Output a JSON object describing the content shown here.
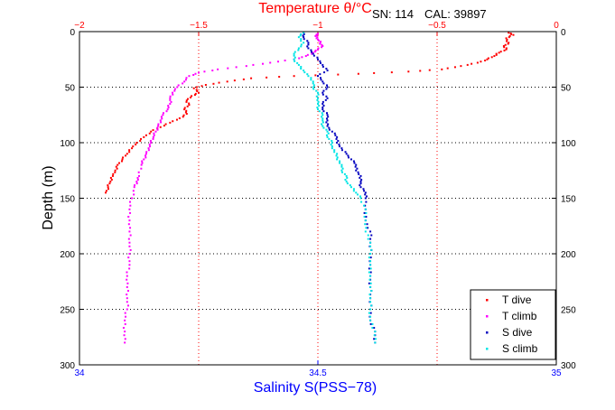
{
  "header": {
    "top_axis_label": "Temperature θ/°C",
    "serial": "SN: 114",
    "calibration": "CAL: 39897"
  },
  "colors": {
    "temperature_axis": "#ff0000",
    "salinity_axis": "#0000ff",
    "t_dive": "#ff0000",
    "t_climb": "#ff00ff",
    "s_dive": "#0000bf",
    "s_climb": "#00e5e5",
    "grid": "#000000"
  },
  "chart_data": {
    "type": "scatter",
    "title": "",
    "ylabel": "Depth (m)",
    "xlabel": "Salinity S(PSS−78)",
    "x2label": "Temperature θ/°C",
    "ylim": [
      0,
      300
    ],
    "y_reversed": true,
    "xlim_salinity": [
      34,
      35
    ],
    "xlim_temperature": [
      -2,
      0
    ],
    "salinity_ticks": [
      "34",
      "34.5",
      "35"
    ],
    "temperature_ticks": [
      "−2",
      "−1.5",
      "−1",
      "−0.5",
      "0"
    ],
    "depth_ticks": [
      "0",
      "50",
      "100",
      "150",
      "200",
      "250",
      "300"
    ],
    "grid": true,
    "legend_position": "bottom-right",
    "series": [
      {
        "name": "T dive",
        "axis": "temperature",
        "marker": "·",
        "points": [
          [
            -0.2,
            1
          ],
          [
            -0.18,
            3
          ],
          [
            -0.21,
            6
          ],
          [
            -0.2,
            10
          ],
          [
            -0.22,
            13
          ],
          [
            -0.21,
            16
          ],
          [
            -0.24,
            19
          ],
          [
            -0.26,
            22
          ],
          [
            -0.29,
            25
          ],
          [
            -0.33,
            28
          ],
          [
            -0.4,
            31
          ],
          [
            -0.48,
            34
          ],
          [
            -0.62,
            36
          ],
          [
            -0.83,
            38
          ],
          [
            -1.1,
            40
          ],
          [
            -1.28,
            42
          ],
          [
            -1.38,
            45
          ],
          [
            -1.47,
            48
          ],
          [
            -1.52,
            51
          ],
          [
            -1.5,
            55
          ],
          [
            -1.53,
            58
          ],
          [
            -1.55,
            62
          ],
          [
            -1.54,
            66
          ],
          [
            -1.56,
            70
          ],
          [
            -1.55,
            74
          ],
          [
            -1.58,
            78
          ],
          [
            -1.62,
            82
          ],
          [
            -1.66,
            86
          ],
          [
            -1.7,
            90
          ],
          [
            -1.73,
            95
          ],
          [
            -1.76,
            100
          ],
          [
            -1.78,
            105
          ],
          [
            -1.8,
            110
          ],
          [
            -1.82,
            115
          ],
          [
            -1.84,
            120
          ],
          [
            -1.85,
            125
          ],
          [
            -1.86,
            130
          ],
          [
            -1.87,
            135
          ],
          [
            -1.88,
            140
          ],
          [
            -1.89,
            145
          ]
        ]
      },
      {
        "name": "T climb",
        "axis": "temperature",
        "marker": "·",
        "points": [
          [
            -1.81,
            280
          ],
          [
            -1.81,
            270
          ],
          [
            -1.81,
            260
          ],
          [
            -1.8,
            250
          ],
          [
            -1.8,
            240
          ],
          [
            -1.8,
            230
          ],
          [
            -1.8,
            220
          ],
          [
            -1.79,
            210
          ],
          [
            -1.79,
            200
          ],
          [
            -1.79,
            190
          ],
          [
            -1.79,
            180
          ],
          [
            -1.79,
            170
          ],
          [
            -1.79,
            160
          ],
          [
            -1.78,
            150
          ],
          [
            -1.77,
            140
          ],
          [
            -1.76,
            135
          ],
          [
            -1.75,
            130
          ],
          [
            -1.74,
            120
          ],
          [
            -1.73,
            115
          ],
          [
            -1.72,
            110
          ],
          [
            -1.71,
            105
          ],
          [
            -1.7,
            100
          ],
          [
            -1.69,
            95
          ],
          [
            -1.68,
            90
          ],
          [
            -1.67,
            85
          ],
          [
            -1.66,
            80
          ],
          [
            -1.65,
            75
          ],
          [
            -1.63,
            70
          ],
          [
            -1.62,
            65
          ],
          [
            -1.62,
            60
          ],
          [
            -1.61,
            55
          ],
          [
            -1.59,
            50
          ],
          [
            -1.56,
            45
          ],
          [
            -1.54,
            40
          ],
          [
            -1.5,
            37
          ],
          [
            -1.42,
            34
          ],
          [
            -1.3,
            31
          ],
          [
            -1.2,
            28
          ],
          [
            -1.1,
            25
          ],
          [
            -1.05,
            22
          ],
          [
            -1.02,
            19
          ],
          [
            -1.0,
            16
          ],
          [
            -0.98,
            13
          ],
          [
            -0.99,
            10
          ],
          [
            -1.0,
            7
          ],
          [
            -1.01,
            4
          ],
          [
            -1.0,
            2
          ]
        ]
      },
      {
        "name": "S dive",
        "axis": "salinity",
        "marker": "·",
        "points": [
          [
            34.47,
            1
          ],
          [
            34.47,
            5
          ],
          [
            34.48,
            10
          ],
          [
            34.48,
            15
          ],
          [
            34.49,
            20
          ],
          [
            34.5,
            25
          ],
          [
            34.51,
            30
          ],
          [
            34.52,
            35
          ],
          [
            34.5,
            40
          ],
          [
            34.51,
            45
          ],
          [
            34.52,
            50
          ],
          [
            34.51,
            55
          ],
          [
            34.52,
            60
          ],
          [
            34.51,
            65
          ],
          [
            34.51,
            70
          ],
          [
            34.52,
            75
          ],
          [
            34.52,
            80
          ],
          [
            34.52,
            85
          ],
          [
            34.53,
            90
          ],
          [
            34.54,
            95
          ],
          [
            34.54,
            100
          ],
          [
            34.55,
            105
          ],
          [
            34.56,
            110
          ],
          [
            34.57,
            115
          ],
          [
            34.58,
            120
          ],
          [
            34.58,
            125
          ],
          [
            34.59,
            130
          ],
          [
            34.59,
            135
          ],
          [
            34.59,
            140
          ],
          [
            34.6,
            145
          ],
          [
            34.6,
            150
          ],
          [
            34.6,
            160
          ],
          [
            34.6,
            170
          ],
          [
            34.61,
            180
          ],
          [
            34.61,
            190
          ],
          [
            34.61,
            200
          ],
          [
            34.61,
            210
          ],
          [
            34.61,
            220
          ],
          [
            34.61,
            230
          ],
          [
            34.61,
            240
          ],
          [
            34.61,
            250
          ],
          [
            34.61,
            260
          ],
          [
            34.62,
            270
          ],
          [
            34.62,
            280
          ]
        ]
      },
      {
        "name": "S climb",
        "axis": "salinity",
        "marker": "·",
        "points": [
          [
            34.62,
            280
          ],
          [
            34.62,
            270
          ],
          [
            34.61,
            260
          ],
          [
            34.61,
            250
          ],
          [
            34.61,
            240
          ],
          [
            34.61,
            230
          ],
          [
            34.61,
            220
          ],
          [
            34.61,
            210
          ],
          [
            34.61,
            200
          ],
          [
            34.61,
            190
          ],
          [
            34.6,
            180
          ],
          [
            34.6,
            170
          ],
          [
            34.6,
            160
          ],
          [
            34.59,
            150
          ],
          [
            34.58,
            145
          ],
          [
            34.57,
            140
          ],
          [
            34.56,
            135
          ],
          [
            34.56,
            130
          ],
          [
            34.55,
            125
          ],
          [
            34.55,
            120
          ],
          [
            34.54,
            115
          ],
          [
            34.54,
            110
          ],
          [
            34.53,
            105
          ],
          [
            34.53,
            100
          ],
          [
            34.52,
            95
          ],
          [
            34.52,
            90
          ],
          [
            34.51,
            85
          ],
          [
            34.51,
            80
          ],
          [
            34.51,
            75
          ],
          [
            34.5,
            70
          ],
          [
            34.5,
            65
          ],
          [
            34.5,
            60
          ],
          [
            34.5,
            55
          ],
          [
            34.49,
            50
          ],
          [
            34.49,
            45
          ],
          [
            34.48,
            40
          ],
          [
            34.47,
            35
          ],
          [
            34.46,
            30
          ],
          [
            34.45,
            25
          ],
          [
            34.45,
            20
          ],
          [
            34.46,
            15
          ],
          [
            34.47,
            10
          ],
          [
            34.46,
            5
          ],
          [
            34.47,
            1
          ]
        ]
      }
    ]
  }
}
